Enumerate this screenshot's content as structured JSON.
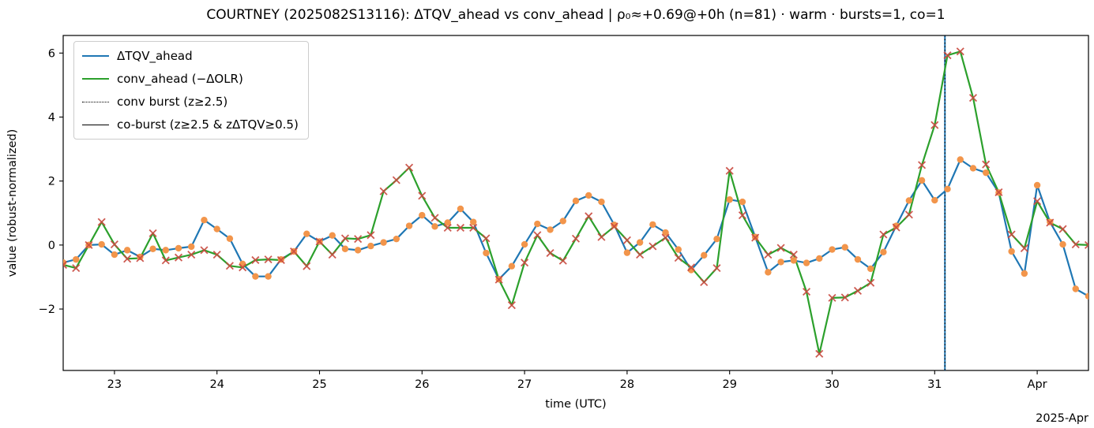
{
  "title": "COURTNEY (2025082S13116): ΔTQV_ahead vs conv_ahead | ρ₀≈+0.69@+0h (n=81) · warm · bursts=1, co=1",
  "axes": {
    "xlabel": "time (UTC)",
    "ylabel": "value (robust-normalized)",
    "offset_text": "2025-Apr",
    "yticks": [
      {
        "value": -2,
        "label": "−2"
      },
      {
        "value": 0,
        "label": "0"
      },
      {
        "value": 2,
        "label": "2"
      },
      {
        "value": 4,
        "label": "4"
      },
      {
        "value": 6,
        "label": "6"
      }
    ],
    "xticks": [
      {
        "day": 23,
        "label": "23"
      },
      {
        "day": 24,
        "label": "24"
      },
      {
        "day": 25,
        "label": "25"
      },
      {
        "day": 26,
        "label": "26"
      },
      {
        "day": 27,
        "label": "27"
      },
      {
        "day": 28,
        "label": "28"
      },
      {
        "day": 29,
        "label": "29"
      },
      {
        "day": 30,
        "label": "30"
      },
      {
        "day": 31,
        "label": "31"
      },
      {
        "day": 32,
        "label": "Apr"
      }
    ],
    "xlim_days": [
      22.5,
      32.5
    ],
    "ylim": [
      -3.92,
      6.55
    ],
    "grid": false
  },
  "legend": {
    "position": "upper-left",
    "entries": [
      {
        "label": "ΔTQV_ahead",
        "color": "#1f77b4",
        "style": "solid",
        "weight": 2.5
      },
      {
        "label": "conv_ahead (−ΔOLR)",
        "color": "#2ca02c",
        "style": "solid",
        "weight": 2.5
      },
      {
        "label": "conv burst (z≥2.5)",
        "color": "#000000",
        "style": "dotted",
        "weight": 1.6
      },
      {
        "label": "co-burst (z≥2.5 & zΔTQV≥0.5)",
        "color": "#000000",
        "style": "solid",
        "weight": 1.6
      }
    ]
  },
  "colors": {
    "dtqv_line": "#1f77b4",
    "conv_line": "#2ca02c",
    "dot_marker": "#f2954b",
    "x_marker": "#c9493f",
    "burst_vline_blue": "#1f77b4",
    "burst_vline_black": "#000000",
    "spine": "#000000"
  },
  "chart_data": {
    "type": "line",
    "title": "COURTNEY (2025082S13116): ΔTQV_ahead vs conv_ahead | ρ₀≈+0.69@+0h (n=81) · warm · bursts=1, co=1",
    "xlabel": "time (UTC)",
    "ylabel": "value (robust-normalized)",
    "n_points": 81,
    "x_unit": "day of month, March 2025 UTC (32.0 = Apr 1), 3-hourly cadence",
    "x_start_day": 22.5,
    "x_step_days": 0.125,
    "xlim": [
      22.5,
      32.5
    ],
    "ylim": [
      -3.92,
      6.55
    ],
    "legend_position": "upper left",
    "grid": false,
    "series": [
      {
        "name": "ΔTQV_ahead",
        "color": "#1f77b4",
        "marker": "circle",
        "marker_color": "#f2954b",
        "values": [
          -0.55,
          -0.45,
          0.0,
          0.02,
          -0.3,
          -0.16,
          -0.37,
          -0.12,
          -0.16,
          -0.1,
          -0.05,
          0.78,
          0.5,
          0.2,
          -0.59,
          -0.98,
          -0.98,
          -0.45,
          -0.2,
          0.35,
          0.11,
          0.3,
          -0.12,
          -0.16,
          -0.03,
          0.08,
          0.19,
          0.6,
          0.93,
          0.58,
          0.7,
          1.13,
          0.72,
          -0.25,
          -1.07,
          -0.66,
          0.02,
          0.66,
          0.48,
          0.75,
          1.38,
          1.55,
          1.35,
          0.63,
          -0.24,
          0.08,
          0.64,
          0.39,
          -0.14,
          -0.78,
          -0.32,
          0.19,
          1.42,
          1.35,
          0.25,
          -0.85,
          -0.53,
          -0.48,
          -0.56,
          -0.42,
          -0.14,
          -0.07,
          -0.45,
          -0.74,
          -0.22,
          0.6,
          1.39,
          2.02,
          1.4,
          1.75,
          2.67,
          2.4,
          2.26,
          1.64,
          -0.2,
          -0.89,
          1.87,
          0.72,
          0.02,
          -1.37,
          -1.6
        ]
      },
      {
        "name": "conv_ahead (−ΔOLR)",
        "color": "#2ca02c",
        "marker": "x",
        "marker_color": "#c9493f",
        "values": [
          -0.62,
          -0.72,
          0.0,
          0.72,
          0.02,
          -0.43,
          -0.41,
          0.37,
          -0.48,
          -0.39,
          -0.3,
          -0.16,
          -0.3,
          -0.65,
          -0.7,
          -0.47,
          -0.45,
          -0.47,
          -0.2,
          -0.66,
          0.11,
          -0.3,
          0.21,
          0.19,
          0.31,
          1.68,
          2.03,
          2.42,
          1.54,
          0.85,
          0.54,
          0.54,
          0.54,
          0.21,
          -1.08,
          -1.88,
          -0.55,
          0.31,
          -0.25,
          -0.49,
          0.2,
          0.9,
          0.25,
          0.58,
          0.15,
          -0.3,
          -0.04,
          0.23,
          -0.4,
          -0.7,
          -1.16,
          -0.72,
          2.32,
          0.93,
          0.23,
          -0.3,
          -0.09,
          -0.3,
          -1.46,
          -3.4,
          -1.65,
          -1.64,
          -1.43,
          -1.18,
          0.33,
          0.55,
          0.95,
          2.5,
          3.75,
          5.93,
          6.05,
          4.6,
          2.52,
          1.65,
          0.33,
          -0.1,
          1.37,
          0.7,
          0.5,
          0.02,
          0.0
        ]
      }
    ],
    "events": [
      {
        "kind": "co-burst",
        "day": 31.1,
        "style": "solid blue line + dotted black overlay, full height"
      }
    ],
    "annotations": {
      "bursts": 1,
      "co_bursts": 1,
      "rho0": "+0.69",
      "lag": "+0h",
      "n": 81,
      "basin_flag": "warm"
    }
  }
}
